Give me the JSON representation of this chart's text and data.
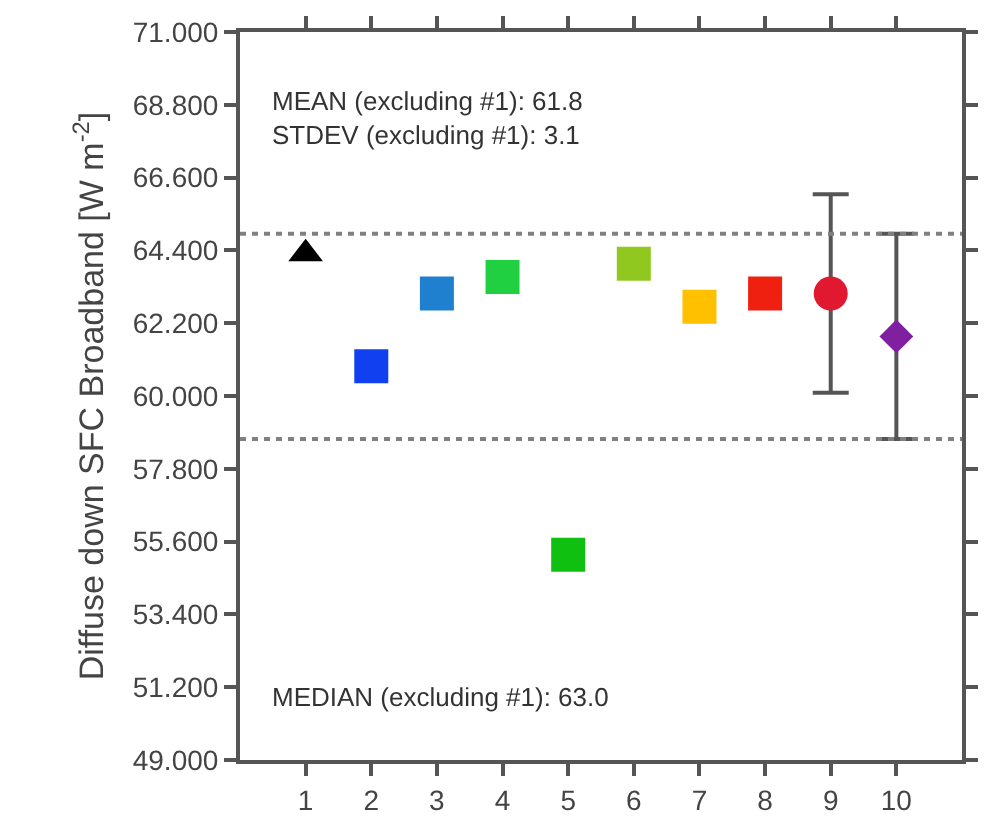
{
  "chart_data": {
    "type": "scatter",
    "ylabel": "Diffuse down SFC Broadband [W m$^{-2}$]",
    "xlim": [
      0,
      11
    ],
    "xticks": [
      1,
      2,
      3,
      4,
      5,
      6,
      7,
      8,
      9,
      10
    ],
    "ylim": [
      49,
      71
    ],
    "yticks": [
      {
        "value": 49,
        "label": "49.000"
      },
      {
        "value": 51.2,
        "label": "51.200"
      },
      {
        "value": 53.4,
        "label": "53.400"
      },
      {
        "value": 55.6,
        "label": "55.600"
      },
      {
        "value": 57.8,
        "label": "57.800"
      },
      {
        "value": 60,
        "label": "60.000"
      },
      {
        "value": 62.2,
        "label": "62.200"
      },
      {
        "value": 64.4,
        "label": "64.400"
      },
      {
        "value": 66.6,
        "label": "66.600"
      },
      {
        "value": 68.8,
        "label": "68.800"
      },
      {
        "value": 71,
        "label": "71.000"
      }
    ],
    "series": [
      {
        "x": [
          1
        ],
        "values": [
          64.3
        ],
        "color": "#000000",
        "marker": "triangle"
      },
      {
        "x": [
          2
        ],
        "values": [
          60.9
        ],
        "color": "#1040f0",
        "marker": "square"
      },
      {
        "x": [
          3
        ],
        "values": [
          63.1
        ],
        "color": "#2080d0",
        "marker": "square"
      },
      {
        "x": [
          4
        ],
        "values": [
          63.6
        ],
        "color": "#20d040",
        "marker": "square"
      },
      {
        "x": [
          5
        ],
        "values": [
          55.2
        ],
        "color": "#10c010",
        "marker": "square"
      },
      {
        "x": [
          6
        ],
        "values": [
          64.0
        ],
        "color": "#90c820",
        "marker": "square"
      },
      {
        "x": [
          7
        ],
        "values": [
          62.7
        ],
        "color": "#ffc000",
        "marker": "square"
      },
      {
        "x": [
          8
        ],
        "values": [
          63.1
        ],
        "color": "#f02010",
        "marker": "square"
      },
      {
        "x": [
          9
        ],
        "values": [
          63.1
        ],
        "color": "#e01830",
        "marker": "circle",
        "errors": [
          3.0
        ]
      },
      {
        "x": [
          10
        ],
        "values": [
          61.8
        ],
        "color": "#8020a0",
        "marker": "diamond",
        "errors": [
          3.1
        ]
      }
    ],
    "ref_lines": [
      {
        "axis": "y",
        "value": 64.9,
        "color": "#808080",
        "line_style": "dotted"
      },
      {
        "axis": "y",
        "value": 58.7,
        "color": "#808080",
        "line_style": "dotted"
      }
    ],
    "annotations": [
      "MEAN (excluding #1): 61.8",
      "STDEV (excluding #1): 3.1",
      "MEDIAN (excluding #1): 63.0"
    ]
  }
}
